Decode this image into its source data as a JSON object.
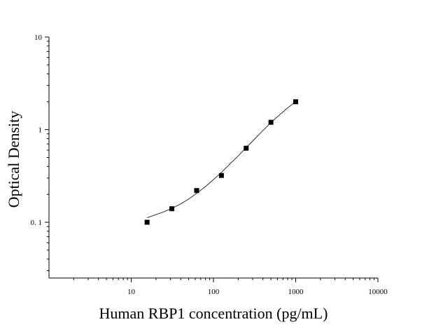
{
  "chart_data": {
    "type": "scatter",
    "title": "",
    "xlabel": "Human RBP1 concentration (pg/mL)",
    "ylabel": "Optical Density",
    "x_scale": "log",
    "y_scale": "log",
    "xlim": [
      1,
      10000
    ],
    "ylim": [
      0.025,
      10
    ],
    "x_ticks": [
      {
        "value": 10,
        "label": "10"
      },
      {
        "value": 100,
        "label": "100"
      },
      {
        "value": 1000,
        "label": "1000"
      },
      {
        "value": 10000,
        "label": "10000"
      }
    ],
    "y_ticks": [
      {
        "value": 0.1,
        "label": "0. 1"
      },
      {
        "value": 1,
        "label": "1"
      },
      {
        "value": 10,
        "label": "10"
      }
    ],
    "grid": false,
    "series": [
      {
        "marker": "square",
        "color": "#000000",
        "points": [
          {
            "x": 15.6,
            "y": 0.1
          },
          {
            "x": 31.2,
            "y": 0.14
          },
          {
            "x": 62.5,
            "y": 0.22
          },
          {
            "x": 125,
            "y": 0.32
          },
          {
            "x": 250,
            "y": 0.63
          },
          {
            "x": 500,
            "y": 1.2
          },
          {
            "x": 1000,
            "y": 2.0
          }
        ]
      }
    ],
    "fit_curve": {
      "color": "#000000",
      "points": [
        {
          "x": 15.6,
          "y": 0.112
        },
        {
          "x": 20,
          "y": 0.121
        },
        {
          "x": 25,
          "y": 0.13
        },
        {
          "x": 31.2,
          "y": 0.141
        },
        {
          "x": 40,
          "y": 0.158
        },
        {
          "x": 50,
          "y": 0.178
        },
        {
          "x": 62.5,
          "y": 0.205
        },
        {
          "x": 80,
          "y": 0.243
        },
        {
          "x": 100,
          "y": 0.289
        },
        {
          "x": 125,
          "y": 0.345
        },
        {
          "x": 160,
          "y": 0.43
        },
        {
          "x": 200,
          "y": 0.52
        },
        {
          "x": 250,
          "y": 0.64
        },
        {
          "x": 320,
          "y": 0.8
        },
        {
          "x": 400,
          "y": 0.98
        },
        {
          "x": 500,
          "y": 1.19
        },
        {
          "x": 640,
          "y": 1.45
        },
        {
          "x": 800,
          "y": 1.72
        },
        {
          "x": 1000,
          "y": 2.0
        }
      ]
    }
  }
}
